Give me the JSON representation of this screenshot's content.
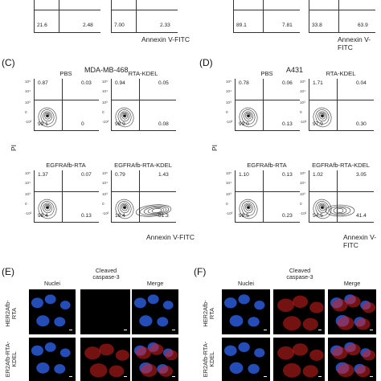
{
  "top_partial": {
    "left": {
      "axis_label": "Annexin V-FITC",
      "plots": [
        {
          "q_ll": "21.6",
          "q_lr": "2.48"
        },
        {
          "q_ll": "7.00",
          "q_lr": "2.33"
        }
      ]
    },
    "right": {
      "axis_label": "Annexin V-FITC",
      "plots": [
        {
          "q_ll": "89.1",
          "q_lr": "7.81"
        },
        {
          "q_ll": "33.8",
          "q_lr": "63.9"
        }
      ]
    }
  },
  "panel_c": {
    "letter": "(C)",
    "title": "MDA-MB-468",
    "y_axis": "PI",
    "x_axis": "Annexin V-FITC",
    "plots": [
      {
        "title": "PBS",
        "q_ul": "0.87",
        "q_ur": "0.03",
        "q_ll": "99.1",
        "q_lr": "0"
      },
      {
        "title": "RTA-KDEL",
        "q_ul": "0.94",
        "q_ur": "0.05",
        "q_ll": "98.9",
        "q_lr": "0.08"
      },
      {
        "title": "EGFRAfb-RTA",
        "q_ul": "1.37",
        "q_ur": "0.07",
        "q_ll": "98.4",
        "q_lr": "0.13"
      },
      {
        "title": "EGFRAfb-RTA-KDEL",
        "q_ul": "0.79",
        "q_ur": "1.43",
        "q_ll": "16.4",
        "q_lr": "81.3"
      }
    ]
  },
  "panel_d": {
    "letter": "(D)",
    "title": "A431",
    "y_axis": "PI",
    "x_axis": "Annexin V-FITC",
    "plots": [
      {
        "title": "PBS",
        "q_ul": "0.78",
        "q_ur": "0.06",
        "q_ll": "99.0",
        "q_lr": "0.13"
      },
      {
        "title": "RTA-KDEL",
        "q_ul": "1.71",
        "q_ur": "0.04",
        "q_ll": "97.9",
        "q_lr": "0.30"
      },
      {
        "title": "EGFRAfb-RTA",
        "q_ul": "1.10",
        "q_ur": "0.13",
        "q_ll": "98.5",
        "q_lr": "0.23"
      },
      {
        "title": "EGFRAfb-RTA-KDEL",
        "q_ul": "1.02",
        "q_ur": "3.05",
        "q_ll": "54.5",
        "q_lr": "41.4"
      }
    ]
  },
  "ticks": {
    "t5": "10⁵",
    "t4": "10⁴",
    "t3": "10³",
    "t0": "0",
    "tn": "-10³"
  },
  "panel_e": {
    "letter": "(E)",
    "col_titles": [
      "Nuclei",
      "Cleaved\ncaspase-3",
      "Merge"
    ],
    "col_title_lines": {
      "c2a": "Cleaved",
      "c2b": "caspase-3"
    },
    "rows": [
      {
        "label_a": "HER2Afb-",
        "label_b": "RTA"
      },
      {
        "label_a": "ER2Afb-RTA-",
        "label_b": "KDEL"
      }
    ]
  },
  "panel_f": {
    "letter": "(F)",
    "col_title_lines": {
      "c1": "Nuclei",
      "c2a": "Cleaved",
      "c2b": "caspase-3",
      "c3": "Merge"
    },
    "rows": [
      {
        "label_a": "HER2Afb-",
        "label_b": "RTA"
      },
      {
        "label_a": "ER2Afb-RTA-",
        "label_b": "KDEL"
      }
    ]
  },
  "colors": {
    "nuclei": "#2a5bd8",
    "caspase": "#d42020",
    "background": "#000000"
  }
}
